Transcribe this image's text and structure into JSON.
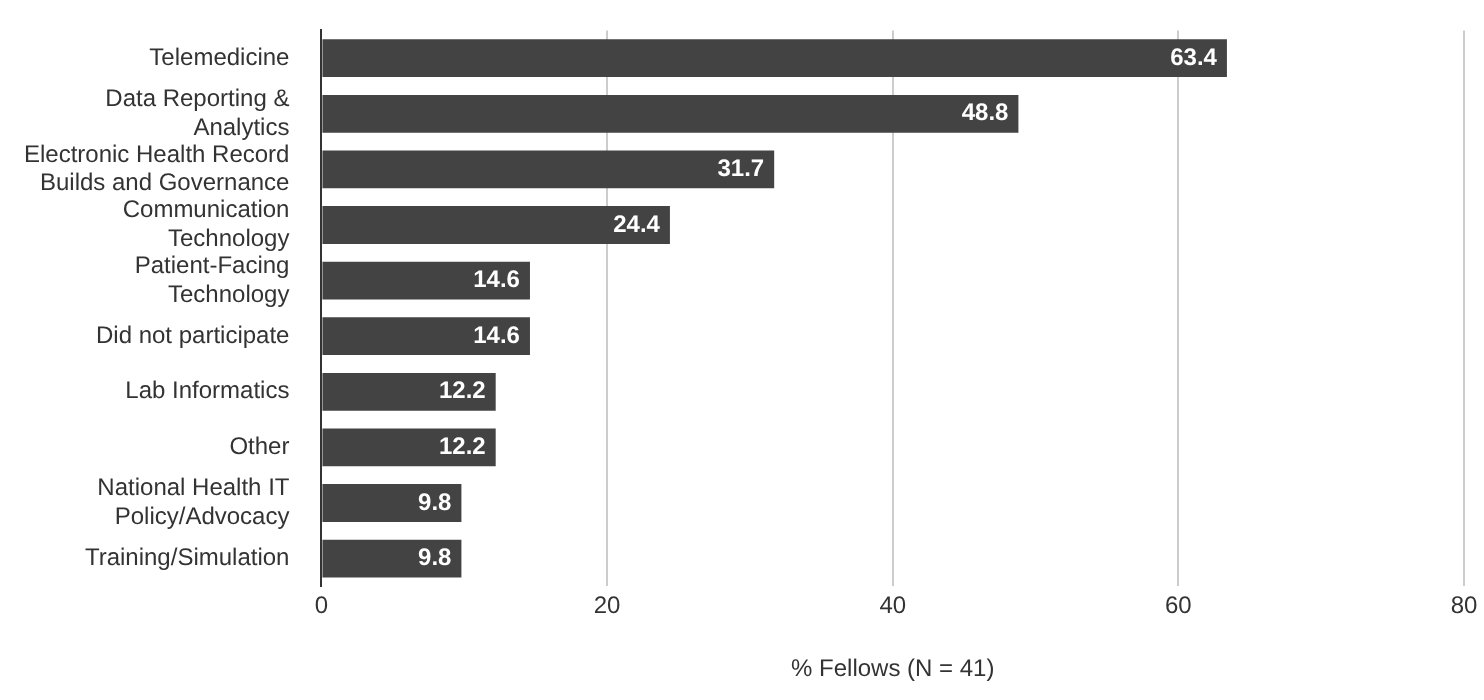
{
  "chart_data": {
    "type": "bar",
    "orientation": "horizontal",
    "xlabel": "% Fellows (N = 41)",
    "categories": [
      "Telemedicine",
      "Data Reporting & Analytics",
      "Electronic Health Record Builds and Governance",
      "Communication Technology",
      "Patient-Facing Technology",
      "Did not participate",
      "Lab Informatics",
      "Other",
      "National Health IT Policy/Advocacy",
      "Training/Simulation"
    ],
    "values": [
      63.4,
      48.8,
      31.7,
      24.4,
      14.6,
      14.6,
      12.2,
      12.2,
      9.8,
      9.8
    ],
    "color": "#434343",
    "xlim": [
      0,
      80
    ],
    "xticks": [
      0,
      20,
      40,
      60,
      80
    ],
    "grid": "x",
    "data_labels": true,
    "legend": false
  }
}
